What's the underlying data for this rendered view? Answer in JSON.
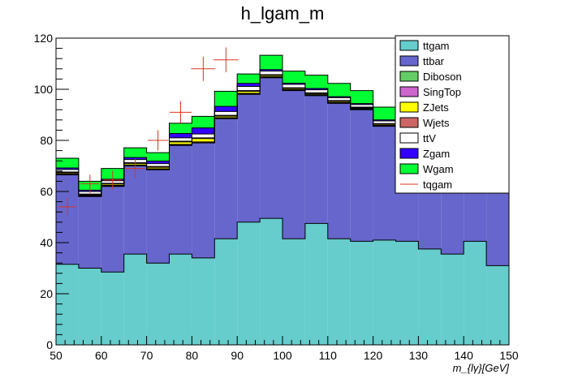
{
  "chart_data": {
    "type": "bar",
    "title": "h_lgam_m",
    "xlabel": "m_{lγ}[GeV]",
    "ylabel": "",
    "xlim": [
      50,
      150
    ],
    "ylim": [
      0,
      120
    ],
    "x_ticks": [
      50,
      60,
      70,
      80,
      90,
      100,
      110,
      120,
      130,
      140,
      150
    ],
    "y_ticks": [
      0,
      20,
      40,
      60,
      80,
      100,
      120
    ],
    "bin_edges": [
      50,
      55,
      60,
      65,
      70,
      75,
      80,
      85,
      90,
      95,
      100,
      105,
      110,
      115,
      120,
      125,
      130,
      135,
      140,
      145,
      150
    ],
    "stacked": true,
    "legend_position": "top-right",
    "series": [
      {
        "name": "ttgam",
        "color": "#66cccc",
        "values": [
          31.5,
          30,
          28.5,
          35.5,
          32,
          35.5,
          34,
          41.5,
          48,
          49.5,
          41.5,
          47.5,
          41.5,
          40.5,
          41,
          40.5,
          37.5,
          35.5,
          40.5,
          31
        ]
      },
      {
        "name": "ttbar",
        "color": "#6666cc",
        "values": [
          35,
          28,
          33.5,
          34.5,
          36.5,
          42.5,
          45,
          47,
          50,
          55,
          58,
          50,
          53,
          51.5,
          44.5,
          40,
          35,
          30,
          25,
          29
        ]
      },
      {
        "name": "Diboson",
        "color": "#66cc66",
        "values": [
          0.1,
          0.1,
          0.1,
          0.1,
          0.1,
          0.1,
          0.1,
          0.1,
          0.1,
          0.1,
          0.1,
          0.1,
          0.1,
          0.1,
          0.1,
          0.1,
          0.1,
          0.1,
          0.1,
          0.1
        ]
      },
      {
        "name": "SingTop",
        "color": "#cc66cc",
        "values": [
          0.3,
          0.3,
          0.3,
          0.3,
          0.3,
          0.3,
          0.3,
          0.3,
          0.3,
          0.3,
          0.3,
          0.3,
          0.3,
          0.3,
          0.3,
          0.3,
          0.3,
          0.3,
          0.3,
          0.3
        ]
      },
      {
        "name": "ZJets",
        "color": "#ffff00",
        "values": [
          0.4,
          0.3,
          0.5,
          0.6,
          0.6,
          1.0,
          1.3,
          0.6,
          0.8,
          0.5,
          0.4,
          0.4,
          0.4,
          0.3,
          0.4,
          0.3,
          0.3,
          0.2,
          0.2,
          0.2
        ]
      },
      {
        "name": "Wjets",
        "color": "#cc6666",
        "values": [
          0.3,
          0.3,
          0.3,
          0.3,
          0.3,
          0.3,
          0.3,
          0.3,
          0.3,
          0.3,
          0.3,
          0.3,
          0.3,
          0.3,
          0.3,
          0.3,
          0.3,
          0.3,
          0.3,
          0.3
        ]
      },
      {
        "name": "ttV",
        "color": "#ffffff",
        "values": [
          1.0,
          1.0,
          1.0,
          1.2,
          1.1,
          1.3,
          1.5,
          1.5,
          1.6,
          1.4,
          1.3,
          1.2,
          1.1,
          1.0,
          1.0,
          0.9,
          0.8,
          0.7,
          0.7,
          0.6
        ]
      },
      {
        "name": "Zgam",
        "color": "#3300ff",
        "values": [
          0.6,
          0.5,
          0.6,
          0.8,
          1.0,
          1.7,
          2.4,
          2.0,
          1.2,
          0.6,
          0.5,
          0.5,
          0.4,
          0.4,
          0.4,
          0.3,
          0.3,
          0.3,
          0.3,
          0.3
        ]
      },
      {
        "name": "Wgam",
        "color": "#00ff33",
        "values": [
          3.8,
          3.5,
          4.2,
          3.8,
          3.3,
          4.0,
          4.5,
          5.9,
          3.7,
          5.6,
          4.7,
          5.2,
          5.2,
          5.1,
          5.0,
          4.5,
          4.0,
          3.5,
          3.5,
          3.0
        ]
      }
    ],
    "signal": {
      "name": "tqgam",
      "color": "#dd3322",
      "points": [
        {
          "x": 52.5,
          "y": 54
        },
        {
          "x": 57.5,
          "y": 63
        },
        {
          "x": 62.5,
          "y": 64.5
        },
        {
          "x": 67.5,
          "y": 69
        },
        {
          "x": 72.5,
          "y": 80
        },
        {
          "x": 77.5,
          "y": 91
        },
        {
          "x": 82.5,
          "y": 108
        },
        {
          "x": 87.5,
          "y": 111.5
        }
      ]
    },
    "legend": [
      "ttgam",
      "ttbar",
      "Diboson",
      "SingTop",
      "ZJets",
      "Wjets",
      "ttV",
      "Zgam",
      "Wgam",
      "tqgam"
    ]
  }
}
